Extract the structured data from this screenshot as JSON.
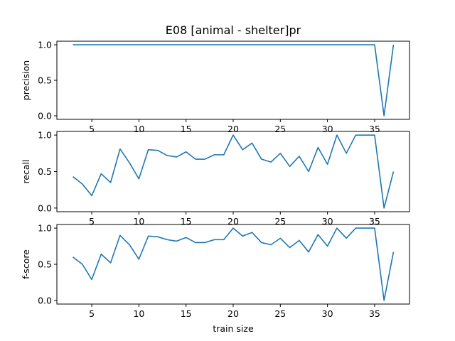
{
  "title": "E08 [animal - shelter]pr",
  "chart_data": [
    {
      "type": "line",
      "ylabel": "precision",
      "xlabel": "",
      "xlim": [
        1.3,
        38.7
      ],
      "ylim": [
        -0.05,
        1.05
      ],
      "xticks": [
        5,
        10,
        15,
        20,
        25,
        30,
        35
      ],
      "yticks": [
        0.0,
        0.5,
        1.0
      ],
      "ytick_labels": [
        "0.0",
        "0.5",
        "1.0"
      ],
      "x": [
        3,
        4,
        5,
        6,
        7,
        8,
        9,
        10,
        11,
        12,
        13,
        14,
        15,
        16,
        17,
        18,
        19,
        20,
        21,
        22,
        23,
        24,
        25,
        26,
        27,
        28,
        29,
        30,
        31,
        32,
        33,
        34,
        35,
        36,
        37
      ],
      "y": [
        1,
        1,
        1,
        1,
        1,
        1,
        1,
        1,
        1,
        1,
        1,
        1,
        1,
        1,
        1,
        1,
        1,
        1,
        1,
        1,
        1,
        1,
        1,
        1,
        1,
        1,
        1,
        1,
        1,
        1,
        1,
        1,
        1,
        0,
        1
      ]
    },
    {
      "type": "line",
      "ylabel": "recall",
      "xlabel": "",
      "xlim": [
        1.3,
        38.7
      ],
      "ylim": [
        -0.05,
        1.05
      ],
      "xticks": [
        5,
        10,
        15,
        20,
        25,
        30,
        35
      ],
      "yticks": [
        0.0,
        0.5,
        1.0
      ],
      "ytick_labels": [
        "0.0",
        "0.5",
        "1.0"
      ],
      "x": [
        3,
        4,
        5,
        6,
        7,
        8,
        9,
        10,
        11,
        12,
        13,
        14,
        15,
        16,
        17,
        18,
        19,
        20,
        21,
        22,
        23,
        24,
        25,
        26,
        27,
        28,
        29,
        30,
        31,
        32,
        33,
        34,
        35,
        36,
        37
      ],
      "y": [
        0.43,
        0.33,
        0.17,
        0.47,
        0.35,
        0.81,
        0.62,
        0.4,
        0.8,
        0.79,
        0.72,
        0.7,
        0.77,
        0.67,
        0.67,
        0.73,
        0.73,
        1.0,
        0.8,
        0.89,
        0.67,
        0.63,
        0.75,
        0.57,
        0.71,
        0.5,
        0.83,
        0.6,
        1.0,
        0.75,
        1.0,
        1.0,
        1.0,
        0.0,
        0.5
      ]
    },
    {
      "type": "line",
      "ylabel": "f-score",
      "xlabel": "train size",
      "xlim": [
        1.3,
        38.7
      ],
      "ylim": [
        -0.05,
        1.05
      ],
      "xticks": [
        5,
        10,
        15,
        20,
        25,
        30,
        35
      ],
      "yticks": [
        0.0,
        0.5,
        1.0
      ],
      "ytick_labels": [
        "0.0",
        "0.5",
        "1.0"
      ],
      "x": [
        3,
        4,
        5,
        6,
        7,
        8,
        9,
        10,
        11,
        12,
        13,
        14,
        15,
        16,
        17,
        18,
        19,
        20,
        21,
        22,
        23,
        24,
        25,
        26,
        27,
        28,
        29,
        30,
        31,
        32,
        33,
        34,
        35,
        36,
        37
      ],
      "y": [
        0.6,
        0.5,
        0.29,
        0.64,
        0.52,
        0.9,
        0.77,
        0.57,
        0.89,
        0.88,
        0.84,
        0.82,
        0.87,
        0.8,
        0.8,
        0.84,
        0.84,
        1.0,
        0.89,
        0.94,
        0.8,
        0.77,
        0.86,
        0.73,
        0.83,
        0.67,
        0.91,
        0.75,
        1.0,
        0.86,
        1.0,
        1.0,
        1.0,
        0.0,
        0.67
      ]
    }
  ],
  "colors": {
    "series": "#1f77b4"
  }
}
